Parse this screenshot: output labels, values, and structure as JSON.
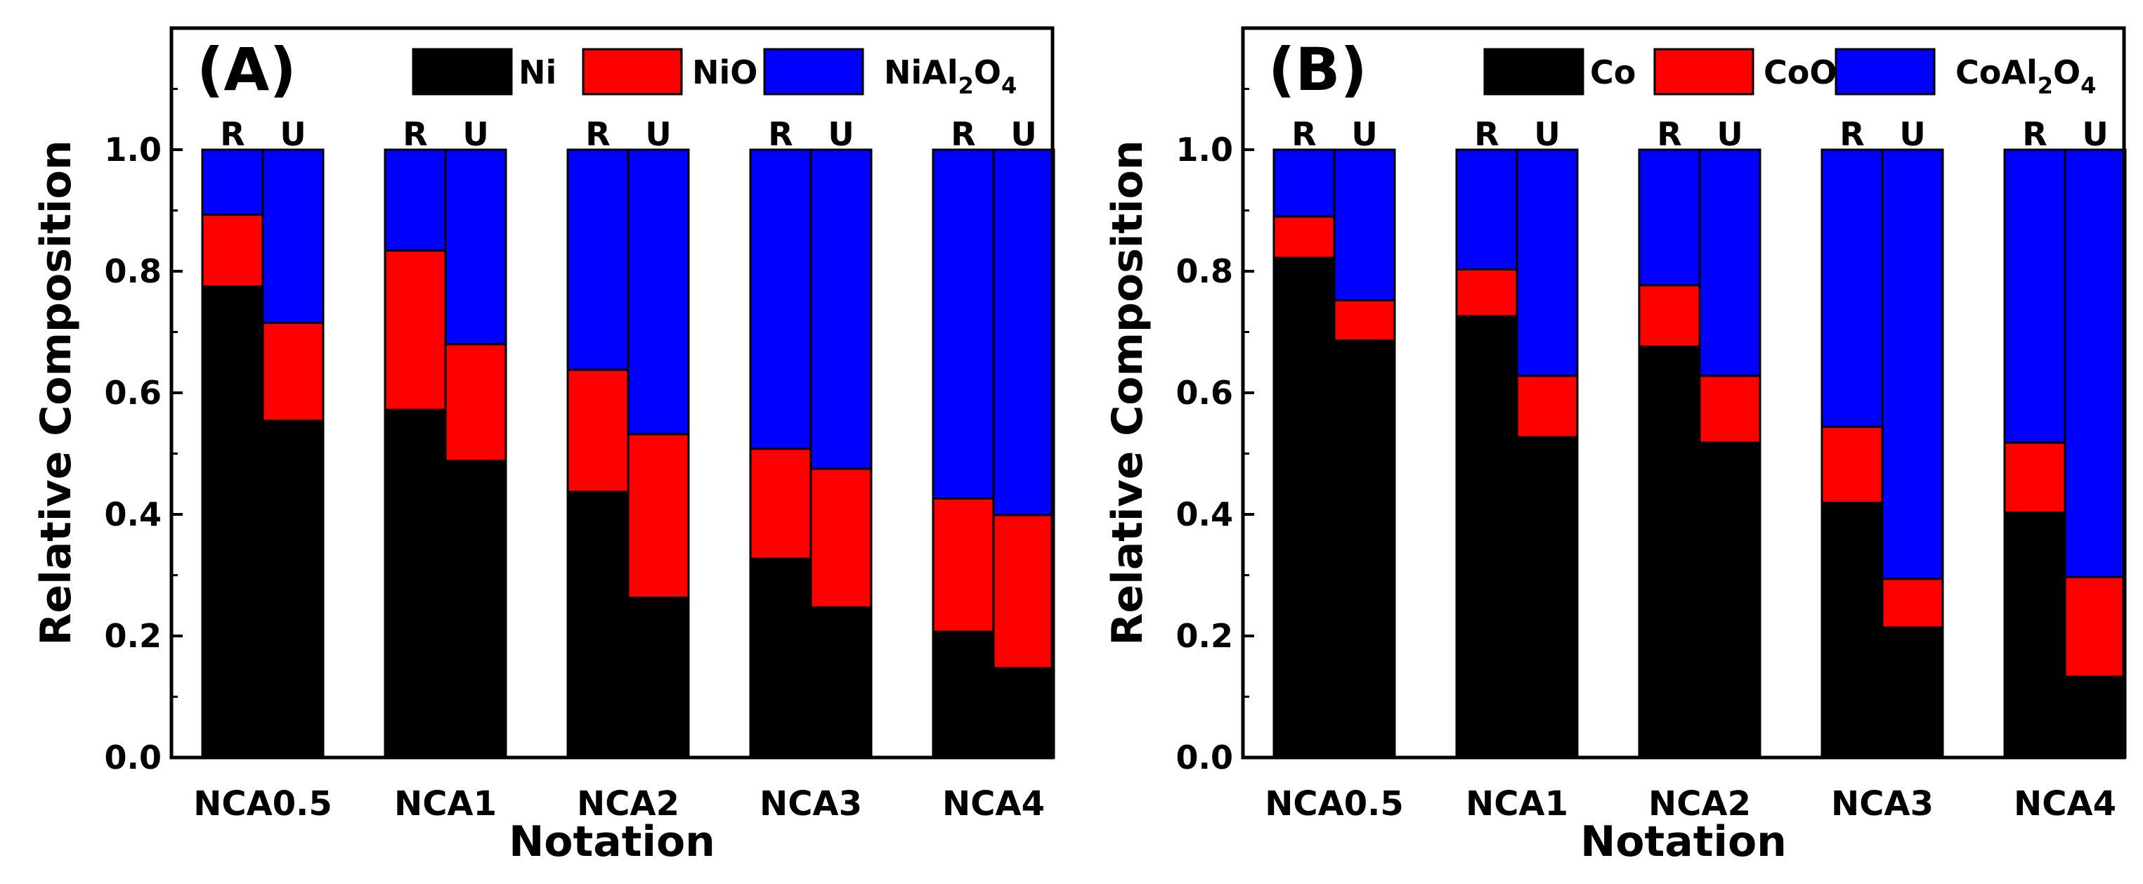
{
  "chart_data": [
    {
      "type": "bar",
      "stacked": true,
      "panel_label": "(A)",
      "xlabel": "Notation",
      "ylabel": "Relative Composition",
      "ylim": [
        0,
        1.2
      ],
      "yticks": [
        "0.0",
        "0.2",
        "0.4",
        "0.6",
        "0.8",
        "1.0"
      ],
      "categories": [
        "NCA0.5",
        "NCA1",
        "NCA2",
        "NCA3",
        "NCA4"
      ],
      "subgroups": [
        "R",
        "U"
      ],
      "legend_position": "top-right",
      "series": [
        {
          "name": "Ni",
          "legend": {
            "main": "Ni",
            "parts": []
          },
          "color": "#000000",
          "values": {
            "R": [
              0.775,
              0.572,
              0.437,
              0.327,
              0.207
            ],
            "U": [
              0.554,
              0.488,
              0.263,
              0.247,
              0.147
            ]
          }
        },
        {
          "name": "NiO",
          "legend": {
            "main": "NiO",
            "parts": []
          },
          "color": "#ff0000",
          "values": {
            "R": [
              0.118,
              0.262,
              0.201,
              0.181,
              0.219
            ],
            "U": [
              0.161,
              0.192,
              0.269,
              0.228,
              0.252
            ]
          }
        },
        {
          "name": "NiAl2O4",
          "legend": {
            "main": "NiAl",
            "parts": [
              {
                "sub": "2"
              },
              {
                "text": "O"
              },
              {
                "sub": "4"
              }
            ]
          },
          "color": "#0000ff",
          "values": {
            "R": [
              0.107,
              0.166,
              0.362,
              0.492,
              0.574
            ],
            "U": [
              0.285,
              0.32,
              0.468,
              0.525,
              0.601
            ]
          }
        }
      ]
    },
    {
      "type": "bar",
      "stacked": true,
      "panel_label": "(B)",
      "xlabel": "Notation",
      "ylabel": "Relative Composition",
      "ylim": [
        0,
        1.2
      ],
      "yticks": [
        "0.0",
        "0.2",
        "0.4",
        "0.6",
        "0.8",
        "1.0"
      ],
      "categories": [
        "NCA0.5",
        "NCA1",
        "NCA2",
        "NCA3",
        "NCA4"
      ],
      "subgroups": [
        "R",
        "U"
      ],
      "legend_position": "top-right",
      "series": [
        {
          "name": "Co",
          "legend": {
            "main": "Co",
            "parts": []
          },
          "color": "#000000",
          "values": {
            "R": [
              0.822,
              0.726,
              0.676,
              0.419,
              0.403
            ],
            "U": [
              0.686,
              0.527,
              0.518,
              0.214,
              0.133
            ]
          }
        },
        {
          "name": "CoO",
          "legend": {
            "main": "CoO",
            "parts": []
          },
          "color": "#ff0000",
          "values": {
            "R": [
              0.068,
              0.077,
              0.101,
              0.125,
              0.115
            ],
            "U": [
              0.066,
              0.101,
              0.11,
              0.08,
              0.164
            ]
          }
        },
        {
          "name": "CoAl2O4",
          "legend": {
            "main": "CoAl",
            "parts": [
              {
                "sub": "2"
              },
              {
                "text": "O"
              },
              {
                "sub": "4"
              }
            ]
          },
          "color": "#0000ff",
          "values": {
            "R": [
              0.11,
              0.197,
              0.223,
              0.456,
              0.482
            ],
            "U": [
              0.248,
              0.372,
              0.372,
              0.706,
              0.703
            ]
          }
        }
      ]
    }
  ]
}
